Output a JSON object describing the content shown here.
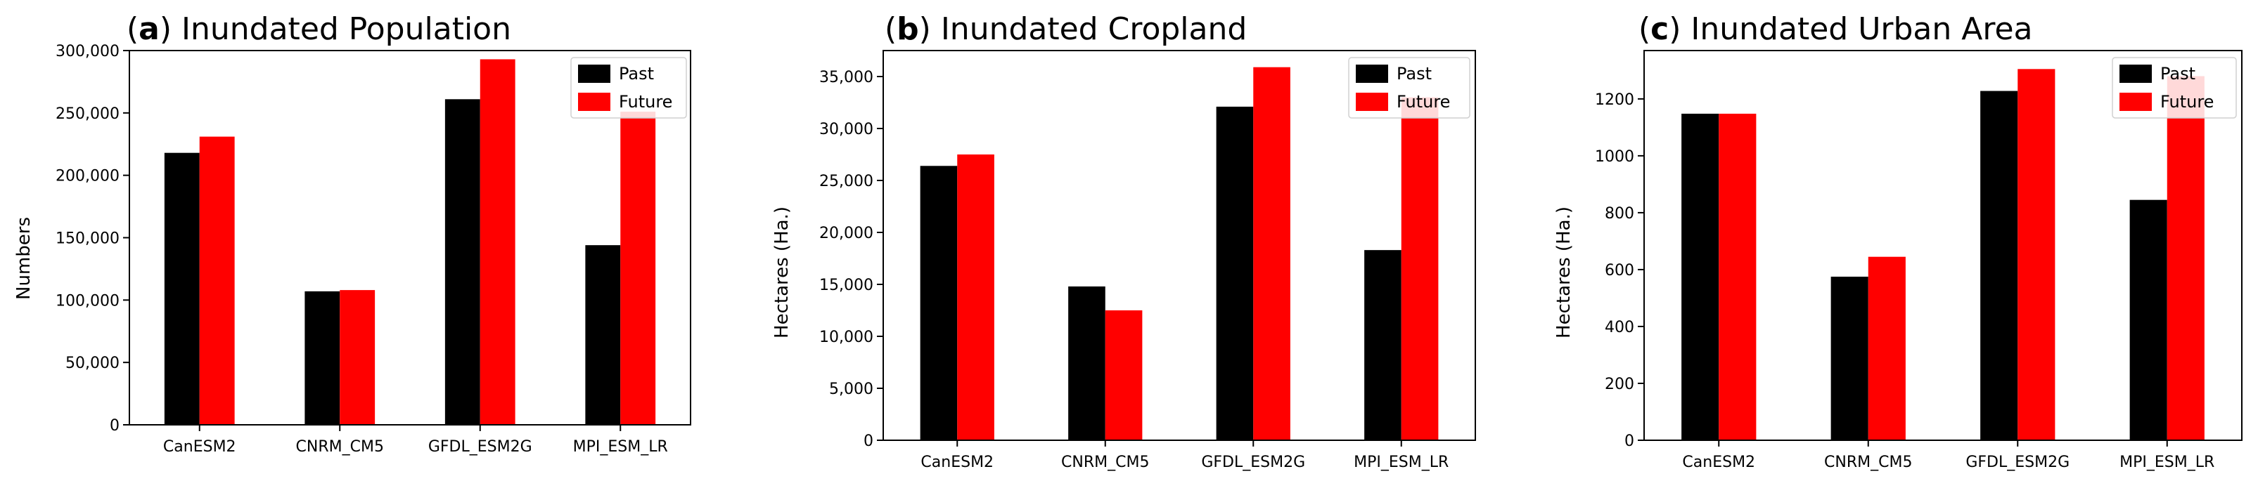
{
  "colors": {
    "past": "#000000",
    "future": "#ff0000"
  },
  "chart_data": [
    {
      "type": "bar",
      "title_letter": "a",
      "title_text": "Inundated Population",
      "ylabel": "Numbers",
      "ylim": [
        0,
        300000
      ],
      "yticks": [
        0,
        50000,
        100000,
        150000,
        200000,
        250000,
        300000
      ],
      "ytick_labels": [
        "0",
        "50,000",
        "100,000",
        "150,000",
        "200,000",
        "250,000",
        "300,000"
      ],
      "categories": [
        "CanESM2",
        "CNRM_CM5",
        "GFDL_ESM2G",
        "MPI_ESM_LR"
      ],
      "series": [
        {
          "name": "Past",
          "values": [
            218000,
            107000,
            261000,
            144000
          ]
        },
        {
          "name": "Future",
          "values": [
            231000,
            108000,
            293000,
            251000
          ]
        }
      ],
      "legend": "top-right"
    },
    {
      "type": "bar",
      "title_letter": "b",
      "title_text": "Inundated Cropland",
      "ylabel": "Hectares (Ha.)",
      "ylim": [
        0,
        37500
      ],
      "yticks": [
        0,
        5000,
        10000,
        15000,
        20000,
        25000,
        30000,
        35000
      ],
      "ytick_labels": [
        "0",
        "5,000",
        "10,000",
        "15,000",
        "20,000",
        "25,000",
        "30,000",
        "35,000"
      ],
      "categories": [
        "CanESM2",
        "CNRM_CM5",
        "GFDL_ESM2G",
        "MPI_ESM_LR"
      ],
      "series": [
        {
          "name": "Past",
          "values": [
            26400,
            14800,
            32100,
            18300
          ]
        },
        {
          "name": "Future",
          "values": [
            27500,
            12500,
            35900,
            33000
          ]
        }
      ],
      "legend": "top-right"
    },
    {
      "type": "bar",
      "title_letter": "c",
      "title_text": "Inundated Urban Area",
      "ylabel": "Hectares (Ha.)",
      "ylim": [
        0,
        1370
      ],
      "yticks": [
        0,
        200,
        400,
        600,
        800,
        1000,
        1200
      ],
      "ytick_labels": [
        "0",
        "200",
        "400",
        "600",
        "800",
        "1000",
        "1200"
      ],
      "categories": [
        "CanESM2",
        "CNRM_CM5",
        "GFDL_ESM2G",
        "MPI_ESM_LR"
      ],
      "series": [
        {
          "name": "Past",
          "values": [
            1148,
            575,
            1228,
            845
          ]
        },
        {
          "name": "Future",
          "values": [
            1148,
            645,
            1305,
            1280
          ]
        }
      ],
      "legend": "top-right"
    }
  ]
}
